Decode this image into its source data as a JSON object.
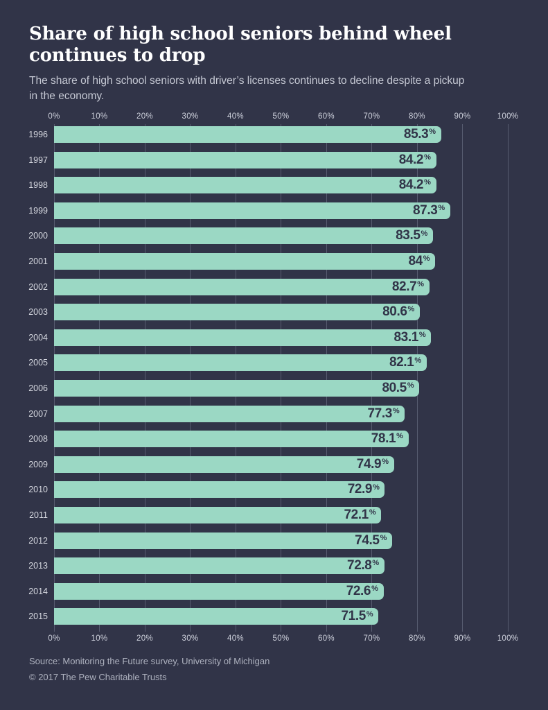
{
  "header": {
    "title_lines": [
      "Share of high school seniors behind wheel",
      "continues to drop"
    ],
    "subtitle_lines": [
      "The share of high school seniors with driver’s licenses continues to decline despite a pickup",
      "in the economy."
    ]
  },
  "chart_data": {
    "type": "bar",
    "orientation": "horizontal",
    "title": "Share of high school seniors behind wheel continues to drop",
    "subtitle": "The share of high school seniors with driver’s licenses continues to decline despite a pickup in the economy.",
    "categories": [
      "1996",
      "1997",
      "1998",
      "1999",
      "2000",
      "2001",
      "2002",
      "2003",
      "2004",
      "2005",
      "2006",
      "2007",
      "2008",
      "2009",
      "2010",
      "2011",
      "2012",
      "2013",
      "2014",
      "2015"
    ],
    "values": [
      85.3,
      84.2,
      84.2,
      87.3,
      83.5,
      84,
      82.7,
      80.6,
      83.1,
      82.1,
      80.5,
      77.3,
      78.1,
      74.9,
      72.9,
      72.1,
      74.5,
      72.8,
      72.6,
      71.5
    ],
    "value_labels": [
      "85.3",
      "84.2",
      "84.2",
      "87.3",
      "83.5",
      "84",
      "82.7",
      "80.6",
      "83.1",
      "82.1",
      "80.5",
      "77.3",
      "78.1",
      "74.9",
      "72.9",
      "72.1",
      "74.5",
      "72.8",
      "72.6",
      "71.5"
    ],
    "unit": "%",
    "x_ticks": [
      "0%",
      "10%",
      "20%",
      "30%",
      "40%",
      "50%",
      "60%",
      "70%",
      "80%",
      "90%",
      "100%"
    ],
    "xlim": [
      0,
      100
    ],
    "xlabel": "",
    "ylabel": "",
    "grid": true,
    "legend": "none",
    "bar_color": "#9bd8c4",
    "value_label_color": "#313448"
  },
  "footer": {
    "source": "Source: Monitoring the Future survey, University of Michigan",
    "copyright": "© 2017 The Pew Charitable Trusts"
  },
  "colors": {
    "background": "#313448",
    "bar": "#9bd8c4",
    "gridline": "#575c70",
    "title": "#ffffff",
    "subtitle": "#c6c9d4",
    "axis_tick": "#ced1dc",
    "year_label": "#d6d8e0",
    "footer_text": "#aeb2bf"
  }
}
